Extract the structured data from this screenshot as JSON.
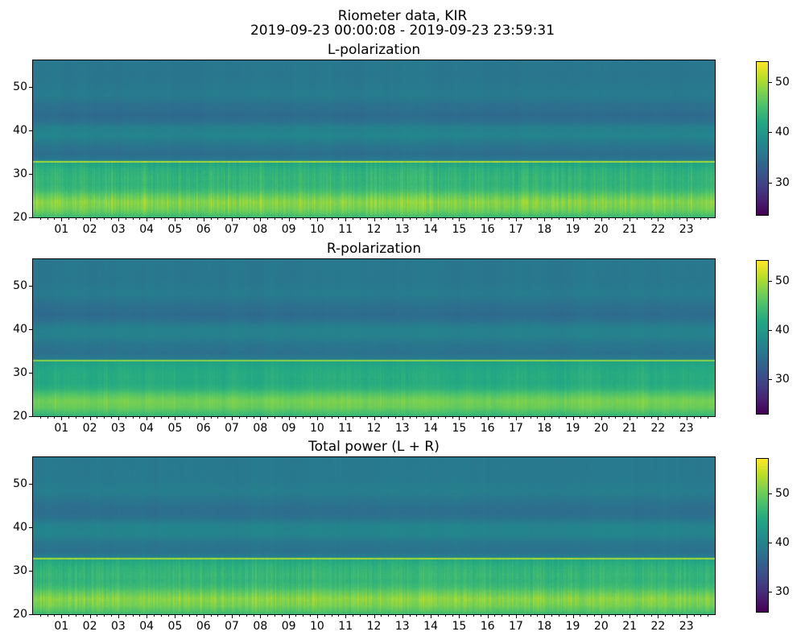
{
  "header": {
    "title": "Riometer data, KIR",
    "subtitle": "2019-09-23 00:00:08 - 2019-09-23 23:59:31"
  },
  "chart_data": [
    {
      "type": "heatmap",
      "title": "L-polarization",
      "colormap": "viridis",
      "grid": false,
      "x_range_hours": [
        0,
        24
      ],
      "x_ticks": [
        "01",
        "02",
        "03",
        "04",
        "05",
        "06",
        "07",
        "08",
        "09",
        "10",
        "11",
        "12",
        "13",
        "14",
        "15",
        "16",
        "17",
        "18",
        "19",
        "20",
        "21",
        "22",
        "23"
      ],
      "x_minor_ticks_per_hour": 4,
      "y_range": [
        20,
        56
      ],
      "y_ticks": [
        20,
        30,
        40,
        50
      ],
      "colorbar_ticks": [
        30,
        40,
        50
      ],
      "vmin": 23.5,
      "vmax": 54,
      "y_profile": [
        [
          20,
          44.0
        ],
        [
          21,
          45.8
        ],
        [
          22,
          47.2
        ],
        [
          23.5,
          48.0
        ],
        [
          25,
          46.0
        ],
        [
          26.3,
          43.8
        ],
        [
          27.5,
          43.0
        ],
        [
          29,
          43.2
        ],
        [
          31,
          42.5
        ],
        [
          32.3,
          41.5
        ],
        [
          33.2,
          36.0
        ],
        [
          34.5,
          34.6
        ],
        [
          36.5,
          35.4
        ],
        [
          38.5,
          37.2
        ],
        [
          40.5,
          36.8
        ],
        [
          42,
          34.8
        ],
        [
          43.5,
          34.2
        ],
        [
          46,
          35.0
        ],
        [
          48,
          36.2
        ],
        [
          51,
          35.6
        ],
        [
          56,
          35.6
        ]
      ],
      "bright_line": {
        "y": 32.7,
        "value": 49.5
      },
      "streaks": {
        "count": 420,
        "amplitude": 3.5,
        "seed": 7
      },
      "noise": 0.5
    },
    {
      "type": "heatmap",
      "title": "R-polarization",
      "colormap": "viridis",
      "grid": false,
      "x_range_hours": [
        0,
        24
      ],
      "x_ticks": [
        "01",
        "02",
        "03",
        "04",
        "05",
        "06",
        "07",
        "08",
        "09",
        "10",
        "11",
        "12",
        "13",
        "14",
        "15",
        "16",
        "17",
        "18",
        "19",
        "20",
        "21",
        "22",
        "23"
      ],
      "x_minor_ticks_per_hour": 4,
      "y_range": [
        20,
        56
      ],
      "y_ticks": [
        20,
        30,
        40,
        50
      ],
      "colorbar_ticks": [
        30,
        40,
        50
      ],
      "vmin": 23,
      "vmax": 54,
      "y_profile": [
        [
          20,
          43.5
        ],
        [
          21,
          45.2
        ],
        [
          22,
          46.8
        ],
        [
          23.5,
          47.5
        ],
        [
          25,
          45.5
        ],
        [
          26.3,
          43.0
        ],
        [
          27.5,
          42.0
        ],
        [
          29,
          42.2
        ],
        [
          31,
          41.8
        ],
        [
          32.3,
          41.0
        ],
        [
          33.2,
          35.8
        ],
        [
          34.5,
          34.6
        ],
        [
          36.5,
          35.2
        ],
        [
          38.5,
          36.8
        ],
        [
          40.5,
          36.4
        ],
        [
          42,
          34.6
        ],
        [
          43.5,
          34.0
        ],
        [
          46,
          34.8
        ],
        [
          48,
          36.0
        ],
        [
          51,
          35.4
        ],
        [
          56,
          35.4
        ]
      ],
      "bright_line": {
        "y": 32.7,
        "value": 48.5
      },
      "streaks": {
        "count": 240,
        "amplitude": 1.6,
        "seed": 13
      },
      "noise": 0.35
    },
    {
      "type": "heatmap",
      "title": "Total power (L + R)",
      "colormap": "viridis",
      "grid": false,
      "x_range_hours": [
        0,
        24
      ],
      "x_ticks": [
        "01",
        "02",
        "03",
        "04",
        "05",
        "06",
        "07",
        "08",
        "09",
        "10",
        "11",
        "12",
        "13",
        "14",
        "15",
        "16",
        "17",
        "18",
        "19",
        "20",
        "21",
        "22",
        "23"
      ],
      "x_minor_ticks_per_hour": 4,
      "y_range": [
        20,
        56
      ],
      "y_ticks": [
        20,
        30,
        40,
        50
      ],
      "colorbar_ticks": [
        30,
        40,
        50
      ],
      "vmin": 26,
      "vmax": 57,
      "y_profile": [
        [
          20,
          47.0
        ],
        [
          21,
          48.8
        ],
        [
          22,
          50.2
        ],
        [
          23.5,
          51.0
        ],
        [
          25,
          49.0
        ],
        [
          26.3,
          46.8
        ],
        [
          27.5,
          46.0
        ],
        [
          29,
          46.2
        ],
        [
          31,
          45.5
        ],
        [
          32.3,
          44.5
        ],
        [
          33.2,
          39.0
        ],
        [
          34.5,
          37.6
        ],
        [
          36.5,
          38.4
        ],
        [
          38.5,
          40.2
        ],
        [
          40.5,
          39.8
        ],
        [
          42,
          37.8
        ],
        [
          43.5,
          37.2
        ],
        [
          46,
          38.0
        ],
        [
          48,
          39.2
        ],
        [
          51,
          38.6
        ],
        [
          56,
          38.6
        ]
      ],
      "bright_line": {
        "y": 32.7,
        "value": 52.5
      },
      "streaks": {
        "count": 420,
        "amplitude": 3.2,
        "seed": 21
      },
      "noise": 0.5
    }
  ]
}
